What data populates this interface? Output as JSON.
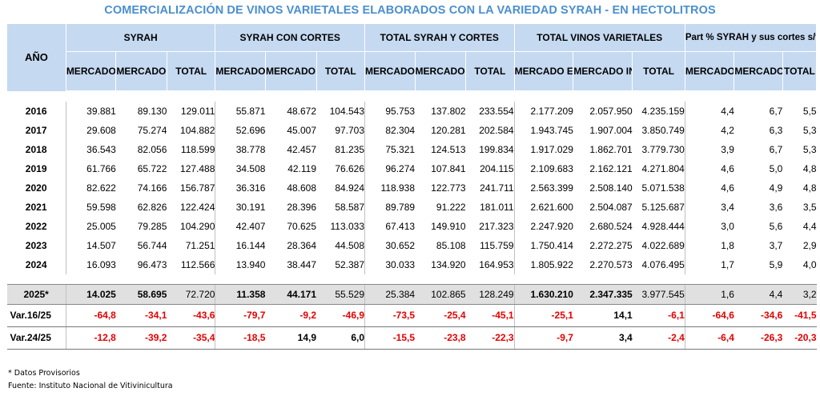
{
  "title": "COMERCIALIZACIÓN DE VINOS VARIETALES ELABORADOS CON LA VARIEDAD SYRAH - EN HECTOLITROS",
  "header": {
    "year_label": "AÑO",
    "groups": [
      "SYRAH",
      "SYRAH CON CORTES",
      "TOTAL SYRAH Y CORTES",
      "TOTAL VINOS VARIETALES",
      "Part % SYRAH y sus cortes s/total varietales"
    ],
    "sub": [
      "MERCADO EXTERNO",
      "MERCADO INTERNO",
      "TOTAL"
    ]
  },
  "rows": [
    {
      "year": "2016",
      "v": [
        "39.881",
        "89.130",
        "129.011",
        "55.871",
        "48.672",
        "104.543",
        "95.753",
        "137.802",
        "233.554",
        "2.177.209",
        "2.057.950",
        "4.235.159",
        "4,4",
        "6,7",
        "5,5"
      ]
    },
    {
      "year": "2017",
      "v": [
        "29.608",
        "75.274",
        "104.882",
        "52.696",
        "45.007",
        "97.703",
        "82.304",
        "120.281",
        "202.584",
        "1.943.745",
        "1.907.004",
        "3.850.749",
        "4,2",
        "6,3",
        "5,3"
      ]
    },
    {
      "year": "2018",
      "v": [
        "36.543",
        "82.056",
        "118.599",
        "38.778",
        "42.457",
        "81.235",
        "75.321",
        "124.513",
        "199.834",
        "1.917.029",
        "1.862.701",
        "3.779.730",
        "3,9",
        "6,7",
        "5,3"
      ]
    },
    {
      "year": "2019",
      "v": [
        "61.766",
        "65.722",
        "127.488",
        "34.508",
        "42.119",
        "76.626",
        "96.274",
        "107.841",
        "204.115",
        "2.109.683",
        "2.162.121",
        "4.271.804",
        "4,6",
        "5,0",
        "4,8"
      ]
    },
    {
      "year": "2020",
      "v": [
        "82.622",
        "74.166",
        "156.787",
        "36.316",
        "48.608",
        "84.924",
        "118.938",
        "122.773",
        "241.711",
        "2.563.399",
        "2.508.140",
        "5.071.538",
        "4,6",
        "4,9",
        "4,8"
      ]
    },
    {
      "year": "2021",
      "v": [
        "59.598",
        "62.826",
        "122.424",
        "30.191",
        "28.396",
        "58.587",
        "89.789",
        "91.222",
        "181.011",
        "2.621.600",
        "2.504.087",
        "5.125.687",
        "3,4",
        "3,6",
        "3,5"
      ]
    },
    {
      "year": "2022",
      "v": [
        "25.005",
        "79.285",
        "104.290",
        "42.407",
        "70.625",
        "113.033",
        "67.413",
        "149.910",
        "217.323",
        "2.247.920",
        "2.680.524",
        "4.928.444",
        "3,0",
        "5,6",
        "4,4"
      ]
    },
    {
      "year": "2023",
      "v": [
        "14.507",
        "56.744",
        "71.251",
        "16.144",
        "28.364",
        "44.508",
        "30.652",
        "85.108",
        "115.759",
        "1.750.414",
        "2.272.275",
        "4.022.689",
        "1,8",
        "3,7",
        "2,9"
      ]
    },
    {
      "year": "2024",
      "v": [
        "16.093",
        "96.473",
        "112.566",
        "13.940",
        "38.447",
        "52.387",
        "30.033",
        "134.920",
        "164.953",
        "1.805.922",
        "2.270.573",
        "4.076.495",
        "1,7",
        "5,9",
        "4,0"
      ]
    }
  ],
  "row2025": {
    "year": "2025*",
    "v": [
      "14.025",
      "58.695",
      "72.720",
      "11.358",
      "44.171",
      "55.529",
      "25.384",
      "102.865",
      "128.249",
      "1.630.210",
      "2.347.335",
      "3.977.545",
      "1,6",
      "4,4",
      "3,2"
    ]
  },
  "variations": [
    {
      "label": "Var.16/25",
      "v": [
        "-64,8",
        "-34,1",
        "-43,6",
        "-79,7",
        "-9,2",
        "-46,9",
        "-73,5",
        "-25,4",
        "-45,1",
        "-25,1",
        "14,1",
        "-6,1",
        "-64,6",
        "-34,6",
        "-41,5"
      ]
    },
    {
      "label": "Var.24/25",
      "v": [
        "-12,8",
        "-39,2",
        "-35,4",
        "-18,5",
        "14,9",
        "6,0",
        "-15,5",
        "-23,8",
        "-22,3",
        "-9,7",
        "3,4",
        "-2,4",
        "-6,4",
        "-26,3",
        "-20,3"
      ]
    }
  ],
  "footnotes": {
    "provisional": "* Datos Provisorios",
    "source": "Fuente: Instituto Nacional de Vitivinicultura"
  },
  "colors": {
    "header_bg": "#c5d9f1",
    "title": "#4a8fd0",
    "negative": "#e60000",
    "highlight_row": "#e0e0e0"
  }
}
